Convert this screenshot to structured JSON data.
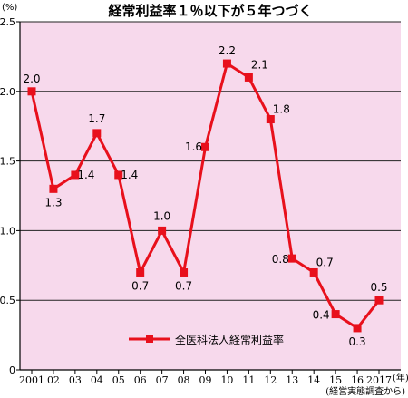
{
  "chart_data": {
    "type": "line",
    "title": "経常利益率１％以下が５年つづく",
    "y_unit": "(%)",
    "x_unit": "(年)",
    "source": "(経営実態調査から)",
    "categories": [
      "2001",
      "02",
      "03",
      "04",
      "05",
      "06",
      "07",
      "08",
      "09",
      "10",
      "11",
      "12",
      "13",
      "14",
      "15",
      "16",
      "2017"
    ],
    "series": [
      {
        "name": "全医科法人経常利益率",
        "values": [
          2.0,
          1.3,
          1.4,
          1.7,
          1.4,
          0.7,
          1.0,
          0.7,
          1.6,
          2.2,
          2.1,
          1.8,
          0.8,
          0.7,
          0.4,
          0.3,
          0.5
        ],
        "labels": [
          "2.0",
          "1.3",
          "1.4",
          "1.7",
          "1.4",
          "0.7",
          "1.0",
          "0.7",
          "1.6",
          "2.2",
          "2.1",
          "1.8",
          "0.8",
          "0.7",
          "0.4",
          "0.3",
          "0.5"
        ]
      }
    ],
    "ylim": [
      0,
      2.5
    ],
    "yticks": [
      0,
      0.5,
      1.0,
      1.5,
      2.0,
      2.5
    ],
    "ytick_labels": [
      "0",
      "0.5",
      "1.0",
      "1.5",
      "2.0",
      "2.5"
    ],
    "grid": true,
    "legend_position": "bottom-center",
    "colors": {
      "plot_background": "#f7d9ec",
      "line": "#e8101c",
      "grid": "#222222"
    }
  }
}
